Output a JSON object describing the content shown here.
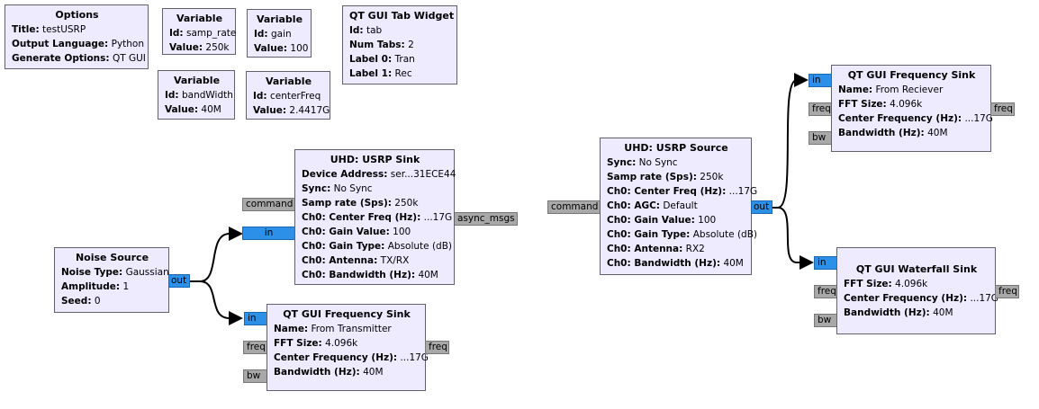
{
  "blocks": {
    "options": {
      "title": "Options",
      "rows": [
        {
          "k": "Title:",
          "v": "testUSRP"
        },
        {
          "k": "Output Language:",
          "v": "Python"
        },
        {
          "k": "Generate Options:",
          "v": "QT GUI"
        }
      ]
    },
    "var_samp_rate": {
      "title": "Variable",
      "rows": [
        {
          "k": "Id:",
          "v": "samp_rate"
        },
        {
          "k": "Value:",
          "v": "250k"
        }
      ]
    },
    "var_gain": {
      "title": "Variable",
      "rows": [
        {
          "k": "Id:",
          "v": "gain"
        },
        {
          "k": "Value:",
          "v": "100"
        }
      ]
    },
    "tab_widget": {
      "title": "QT GUI Tab Widget",
      "rows": [
        {
          "k": "Id:",
          "v": "tab"
        },
        {
          "k": "Num Tabs:",
          "v": "2"
        },
        {
          "k": "Label 0:",
          "v": "Tran"
        },
        {
          "k": "Label 1:",
          "v": "Rec"
        }
      ]
    },
    "var_bandwidth": {
      "title": "Variable",
      "rows": [
        {
          "k": "Id:",
          "v": "bandWidth"
        },
        {
          "k": "Value:",
          "v": "40M"
        }
      ]
    },
    "var_center_freq": {
      "title": "Variable",
      "rows": [
        {
          "k": "Id:",
          "v": "centerFreq"
        },
        {
          "k": "Value:",
          "v": "2.4417G"
        }
      ]
    },
    "usrp_sink": {
      "title": "UHD: USRP Sink",
      "rows": [
        {
          "k": "Device Address:",
          "v": "ser...31ECE44"
        },
        {
          "k": "Sync:",
          "v": "No Sync"
        },
        {
          "k": "Samp rate (Sps):",
          "v": "250k"
        },
        {
          "k": "Ch0: Center Freq (Hz):",
          "v": "...17G"
        },
        {
          "k": "Ch0: Gain Value:",
          "v": "100"
        },
        {
          "k": "Ch0: Gain Type:",
          "v": "Absolute (dB)"
        },
        {
          "k": "Ch0: Antenna:",
          "v": "TX/RX"
        },
        {
          "k": "Ch0: Bandwidth (Hz):",
          "v": "40M"
        }
      ],
      "ports": {
        "command": "command",
        "in": "in",
        "async": "async_msgs"
      }
    },
    "noise_source": {
      "title": "Noise Source",
      "rows": [
        {
          "k": "Noise Type:",
          "v": "Gaussian"
        },
        {
          "k": "Amplitude:",
          "v": "1"
        },
        {
          "k": "Seed:",
          "v": "0"
        }
      ],
      "ports": {
        "out": "out"
      }
    },
    "freq_sink_tx": {
      "title": "QT GUI Frequency Sink",
      "rows": [
        {
          "k": "Name:",
          "v": "From Transmitter"
        },
        {
          "k": "FFT Size:",
          "v": "4.096k"
        },
        {
          "k": "Center Frequency (Hz):",
          "v": "...17G"
        },
        {
          "k": "Bandwidth (Hz):",
          "v": "40M"
        }
      ],
      "ports": {
        "in": "in",
        "freq_in": "freq",
        "bw": "bw",
        "freq_out": "freq"
      }
    },
    "usrp_source": {
      "title": "UHD: USRP Source",
      "rows": [
        {
          "k": "Sync:",
          "v": "No Sync"
        },
        {
          "k": "Samp rate (Sps):",
          "v": "250k"
        },
        {
          "k": "Ch0: Center Freq (Hz):",
          "v": "...17G"
        },
        {
          "k": "Ch0: AGC:",
          "v": "Default"
        },
        {
          "k": "Ch0: Gain Value:",
          "v": "100"
        },
        {
          "k": "Ch0: Gain Type:",
          "v": "Absolute (dB)"
        },
        {
          "k": "Ch0: Antenna:",
          "v": "RX2"
        },
        {
          "k": "Ch0: Bandwidth (Hz):",
          "v": "40M"
        }
      ],
      "ports": {
        "command": "command",
        "out": "out"
      }
    },
    "freq_sink_rx": {
      "title": "QT GUI Frequency Sink",
      "rows": [
        {
          "k": "Name:",
          "v": "From Reciever"
        },
        {
          "k": "FFT Size:",
          "v": "4.096k"
        },
        {
          "k": "Center Frequency (Hz):",
          "v": "...17G"
        },
        {
          "k": "Bandwidth (Hz):",
          "v": "40M"
        }
      ],
      "ports": {
        "in": "in",
        "freq_in": "freq",
        "bw": "bw",
        "freq_out": "freq"
      }
    },
    "waterfall_sink": {
      "title": "QT GUI Waterfall Sink",
      "rows": [
        {
          "k": "FFT Size:",
          "v": "4.096k"
        },
        {
          "k": "Center Frequency (Hz):",
          "v": "...17G"
        },
        {
          "k": "Bandwidth (Hz):",
          "v": "40M"
        }
      ],
      "ports": {
        "in": "in",
        "freq_in": "freq",
        "bw": "bw",
        "freq_out": "freq"
      }
    }
  },
  "colors": {
    "block_fill": "#eeeaff",
    "block_border": "#61616b",
    "data_port": "#2c8fe8",
    "msg_port": "#a8a8a8",
    "wire": "#000000"
  }
}
